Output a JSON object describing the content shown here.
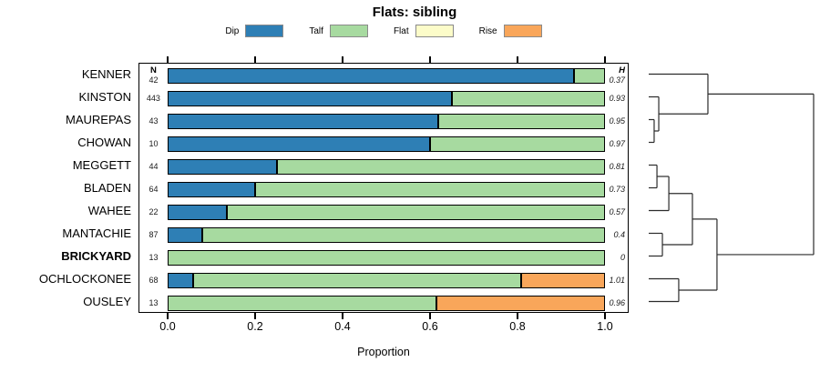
{
  "title": "Flats: sibling",
  "columns": {
    "n_header": "N",
    "h_header": "H"
  },
  "axis": {
    "xlabel": "Proportion",
    "tick_labels": [
      "0.0",
      "0.2",
      "0.4",
      "0.6",
      "0.8",
      "1.0"
    ]
  },
  "legend": {
    "items": [
      {
        "label": "Dip",
        "color": "#2E7FB5"
      },
      {
        "label": "Talf",
        "color": "#A7DAA0"
      },
      {
        "label": "Flat",
        "color": "#FCFCC9"
      },
      {
        "label": "Rise",
        "color": "#F9A65A"
      }
    ]
  },
  "colors": {
    "dip": "#2E7FB5",
    "talf": "#A7DAA0",
    "flat": "#FCFCC9",
    "rise": "#F9A65A",
    "bar_border": "#000000",
    "dendro_line": "#2b2b2b"
  },
  "chart_data": {
    "type": "bar",
    "orientation": "horizontal-stacked",
    "title": "Flats: sibling",
    "xlabel": "Proportion",
    "xlim": [
      0,
      1
    ],
    "xticks": [
      0.0,
      0.2,
      0.4,
      0.6,
      0.8,
      1.0
    ],
    "series_keys": [
      "Dip",
      "Talf",
      "Flat",
      "Rise"
    ],
    "legend_position": "top",
    "rows": [
      {
        "label": "KENNER",
        "n": "42",
        "h": "0.37",
        "bold": false,
        "values": {
          "Dip": 0.93,
          "Talf": 0.07,
          "Flat": 0,
          "Rise": 0
        }
      },
      {
        "label": "KINSTON",
        "n": "443",
        "h": "0.93",
        "bold": false,
        "values": {
          "Dip": 0.65,
          "Talf": 0.35,
          "Flat": 0,
          "Rise": 0
        }
      },
      {
        "label": "MAUREPAS",
        "n": "43",
        "h": "0.95",
        "bold": false,
        "values": {
          "Dip": 0.62,
          "Talf": 0.38,
          "Flat": 0,
          "Rise": 0
        }
      },
      {
        "label": "CHOWAN",
        "n": "10",
        "h": "0.97",
        "bold": false,
        "values": {
          "Dip": 0.6,
          "Talf": 0.4,
          "Flat": 0,
          "Rise": 0
        }
      },
      {
        "label": "MEGGETT",
        "n": "44",
        "h": "0.81",
        "bold": false,
        "values": {
          "Dip": 0.25,
          "Talf": 0.75,
          "Flat": 0,
          "Rise": 0
        }
      },
      {
        "label": "BLADEN",
        "n": "64",
        "h": "0.73",
        "bold": false,
        "values": {
          "Dip": 0.2,
          "Talf": 0.8,
          "Flat": 0,
          "Rise": 0
        }
      },
      {
        "label": "WAHEE",
        "n": "22",
        "h": "0.57",
        "bold": false,
        "values": {
          "Dip": 0.136,
          "Talf": 0.864,
          "Flat": 0,
          "Rise": 0
        }
      },
      {
        "label": "MANTACHIE",
        "n": "87",
        "h": "0.4",
        "bold": false,
        "values": {
          "Dip": 0.08,
          "Talf": 0.92,
          "Flat": 0,
          "Rise": 0
        }
      },
      {
        "label": "BRICKYARD",
        "n": "13",
        "h": "0",
        "bold": true,
        "values": {
          "Dip": 0,
          "Talf": 1.0,
          "Flat": 0,
          "Rise": 0
        }
      },
      {
        "label": "OCHLOCKONEE",
        "n": "68",
        "h": "1.01",
        "bold": false,
        "values": {
          "Dip": 0.059,
          "Talf": 0.75,
          "Flat": 0,
          "Rise": 0.191
        }
      },
      {
        "label": "OUSLEY",
        "n": "13",
        "h": "0.96",
        "bold": false,
        "values": {
          "Dip": 0,
          "Talf": 0.615,
          "Flat": 0,
          "Rise": 0.385
        }
      }
    ],
    "dendrogram": {
      "height": 1.0,
      "children": [
        {
          "height": 0.359,
          "children": [
            {
              "leaf": 0
            },
            {
              "height": 0.061,
              "children": [
                {
                  "leaf": 1
                },
                {
                  "height": 0.033,
                  "children": [
                    {
                      "leaf": 2
                    },
                    {
                      "leaf": 3
                    }
                  ]
                }
              ]
            }
          ]
        },
        {
          "height": 0.414,
          "children": [
            {
              "height": 0.265,
              "children": [
                {
                  "height": 0.122,
                  "children": [
                    {
                      "height": 0.05,
                      "children": [
                        {
                          "leaf": 4
                        },
                        {
                          "leaf": 5
                        }
                      ]
                    },
                    {
                      "leaf": 6
                    }
                  ]
                },
                {
                  "height": 0.083,
                  "children": [
                    {
                      "leaf": 7
                    },
                    {
                      "leaf": 8
                    }
                  ]
                }
              ]
            },
            {
              "height": 0.182,
              "children": [
                {
                  "leaf": 9
                },
                {
                  "leaf": 10
                }
              ]
            }
          ]
        }
      ]
    }
  }
}
